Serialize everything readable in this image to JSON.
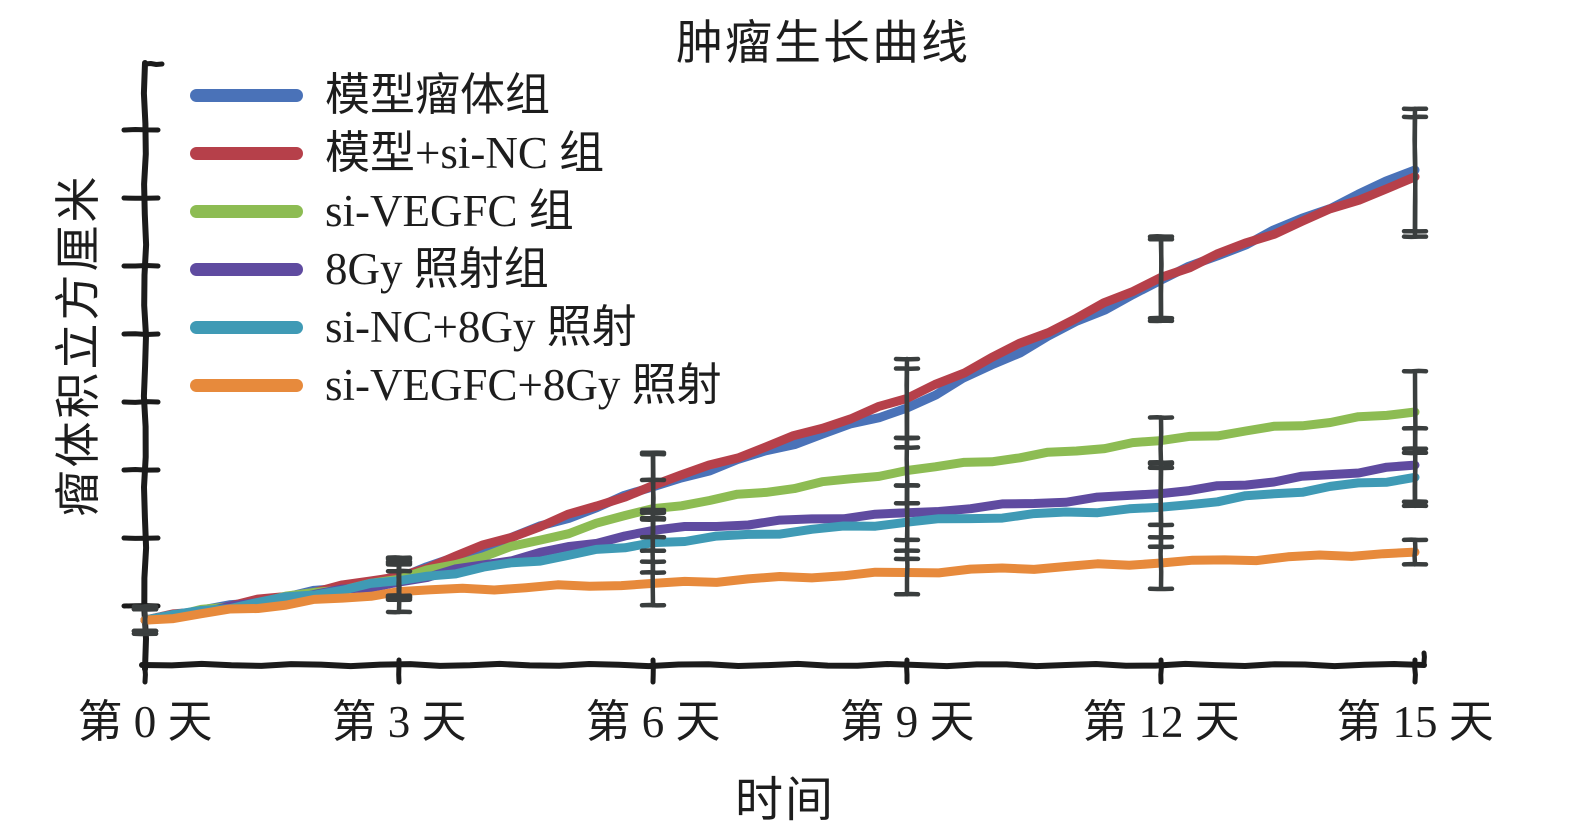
{
  "chart_data": {
    "type": "line",
    "title": "肿瘤生长曲线",
    "xlabel": "时间",
    "ylabel": "瘤体积立方厘米",
    "categories": [
      "第 0 天",
      "第 3 天",
      "第 6 天",
      "第 9 天",
      "第 12 天",
      "第 15 天"
    ],
    "x_days": [
      0,
      3,
      6,
      9,
      12,
      15
    ],
    "ylim": [
      0,
      4.4
    ],
    "y_tick_count": 8,
    "y_tick_labels_shown": false,
    "grid": false,
    "legend_position": "upper left",
    "style": "hand-drawn (xkcd-like) strokes, serif labels, error bars at each point",
    "series": [
      {
        "name": "模型瘤体组",
        "color": "#4a72b8",
        "values": [
          0.33,
          0.64,
          1.31,
          1.89,
          2.83,
          3.64
        ],
        "errors": [
          0.1,
          0.14,
          0.24,
          0.29,
          0.3,
          0.45
        ]
      },
      {
        "name": "模型+si-NC 组",
        "color": "#b6404a",
        "values": [
          0.33,
          0.65,
          1.32,
          1.96,
          2.85,
          3.59
        ],
        "errors": [
          0.1,
          0.14,
          0.24,
          0.29,
          0.3,
          0.44
        ]
      },
      {
        "name": "si-VEGFC 组",
        "color": "#8dbc53",
        "values": [
          0.33,
          0.63,
          1.15,
          1.43,
          1.65,
          1.86
        ],
        "errors": [
          0.08,
          0.13,
          0.21,
          0.24,
          0.17,
          0.3
        ]
      },
      {
        "name": "8Gy 照射组",
        "color": "#5f4ba0",
        "values": [
          0.33,
          0.61,
          0.99,
          1.12,
          1.26,
          1.47
        ],
        "errors": [
          0.08,
          0.13,
          0.15,
          0.2,
          0.23,
          0.27
        ]
      },
      {
        "name": "si-NC+8Gy 照射",
        "color": "#3f9ab5",
        "values": [
          0.33,
          0.62,
          0.9,
          1.05,
          1.16,
          1.38
        ],
        "errors": [
          0.08,
          0.13,
          0.22,
          0.27,
          0.29,
          0.21
        ]
      },
      {
        "name": "si-VEGFC+8Gy 照射",
        "color": "#e78a3c",
        "values": [
          0.33,
          0.54,
          0.6,
          0.68,
          0.75,
          0.83
        ],
        "errors": [
          0.08,
          0.15,
          0.16,
          0.16,
          0.19,
          0.09
        ]
      }
    ]
  },
  "colors": {
    "axis": "#1b1b1b",
    "error_bar": "#3a3e3e",
    "text": "#1d1d1d",
    "background": "#ffffff"
  }
}
